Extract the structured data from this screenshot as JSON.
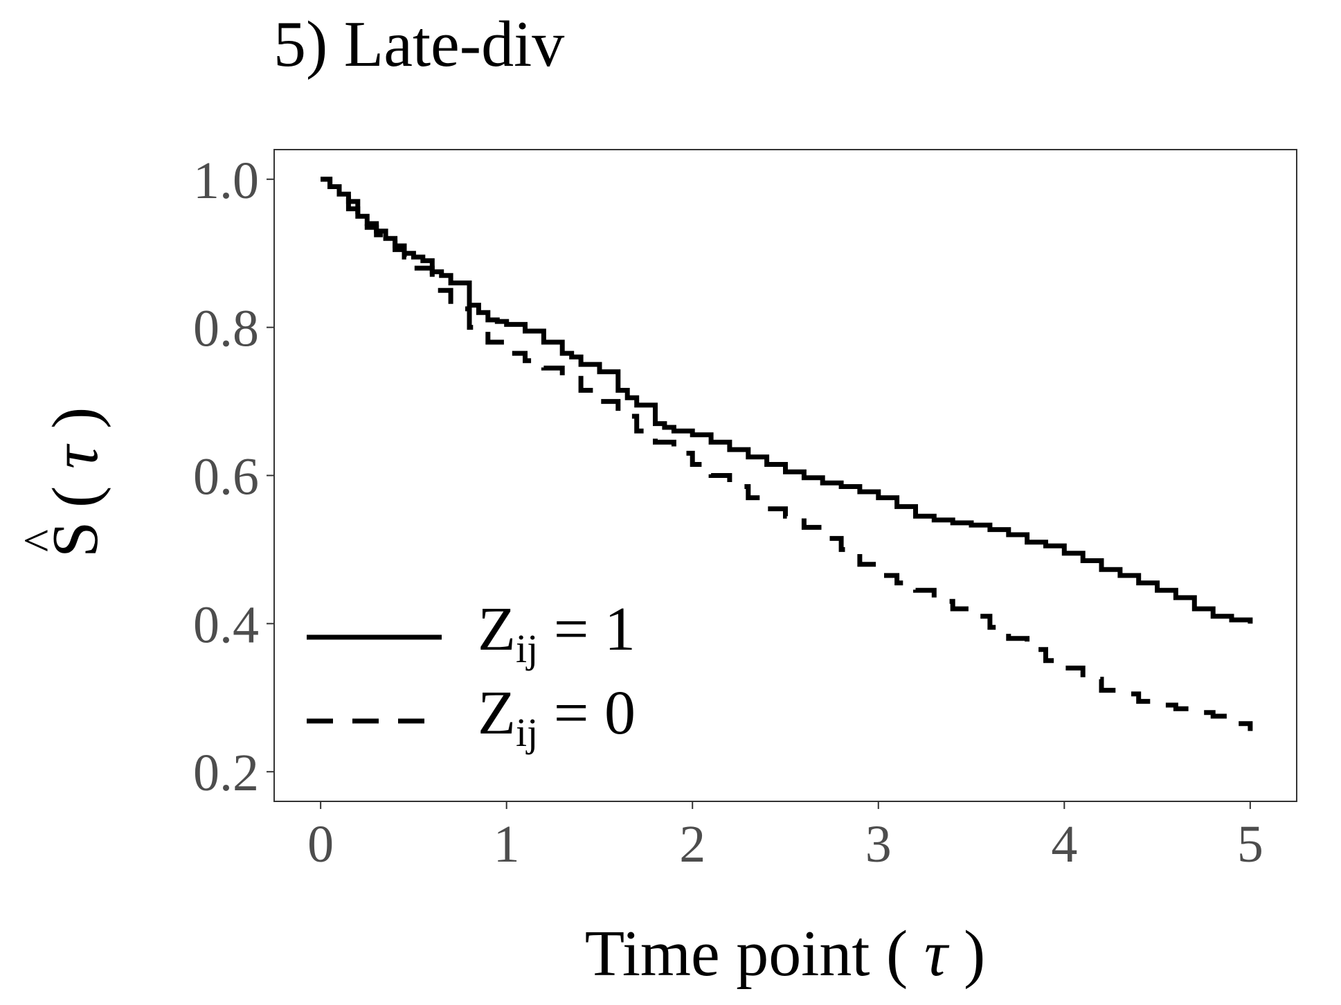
{
  "chart_data": {
    "type": "line",
    "title": "5) Late-div",
    "xlabel_main": "Time point ( ",
    "xlabel_sym": "τ",
    "xlabel_end": " )",
    "ylabel_main": "S",
    "ylabel_hat": "^",
    "ylabel_open": "(",
    "ylabel_sym": "τ",
    "ylabel_close": ")",
    "xlim": [
      -0.25,
      5.25
    ],
    "ylim": [
      0.16,
      1.04
    ],
    "x_ticks": [
      0,
      1,
      2,
      3,
      4,
      5
    ],
    "x_tick_labels": [
      "0",
      "1",
      "2",
      "3",
      "4",
      "5"
    ],
    "y_ticks": [
      0.2,
      0.4,
      0.6,
      0.8,
      1.0
    ],
    "y_tick_labels": [
      "0.2",
      "0.4",
      "0.6",
      "0.8",
      "1.0"
    ],
    "grid": false,
    "legend_position": "bottom-left",
    "legend": [
      {
        "main": "Z",
        "sub": "ij",
        "rest": " = 1",
        "style": "solid"
      },
      {
        "main": "Z",
        "sub": "ij",
        "rest": " = 0",
        "style": "dashed"
      }
    ],
    "series": [
      {
        "style": "solid",
        "x": [
          0,
          0.05,
          0.1,
          0.15,
          0.2,
          0.25,
          0.3,
          0.35,
          0.4,
          0.45,
          0.5,
          0.55,
          0.6,
          0.65,
          0.7,
          0.8,
          0.85,
          0.9,
          0.95,
          1.0,
          1.1,
          1.2,
          1.3,
          1.35,
          1.4,
          1.5,
          1.6,
          1.65,
          1.7,
          1.8,
          1.85,
          1.9,
          2.0,
          2.1,
          2.2,
          2.3,
          2.4,
          2.5,
          2.6,
          2.7,
          2.8,
          2.9,
          3.0,
          3.1,
          3.2,
          3.3,
          3.4,
          3.5,
          3.6,
          3.7,
          3.8,
          3.9,
          4.0,
          4.1,
          4.2,
          4.3,
          4.4,
          4.5,
          4.6,
          4.7,
          4.8,
          4.9,
          5.0
        ],
        "y": [
          1.0,
          0.99,
          0.98,
          0.97,
          0.95,
          0.94,
          0.93,
          0.92,
          0.91,
          0.9,
          0.895,
          0.89,
          0.875,
          0.87,
          0.86,
          0.83,
          0.82,
          0.81,
          0.808,
          0.804,
          0.795,
          0.78,
          0.765,
          0.76,
          0.75,
          0.74,
          0.715,
          0.705,
          0.695,
          0.67,
          0.665,
          0.66,
          0.655,
          0.645,
          0.635,
          0.625,
          0.615,
          0.605,
          0.597,
          0.59,
          0.585,
          0.578,
          0.57,
          0.558,
          0.545,
          0.54,
          0.536,
          0.533,
          0.527,
          0.52,
          0.51,
          0.505,
          0.495,
          0.485,
          0.473,
          0.465,
          0.455,
          0.445,
          0.435,
          0.42,
          0.41,
          0.405,
          0.4
        ]
      },
      {
        "style": "dashed",
        "x": [
          0,
          0.05,
          0.1,
          0.15,
          0.2,
          0.25,
          0.3,
          0.35,
          0.4,
          0.45,
          0.5,
          0.6,
          0.7,
          0.8,
          0.9,
          1.0,
          1.1,
          1.2,
          1.3,
          1.4,
          1.5,
          1.6,
          1.7,
          1.8,
          1.9,
          2.0,
          2.1,
          2.2,
          2.3,
          2.4,
          2.5,
          2.6,
          2.7,
          2.8,
          2.9,
          3.0,
          3.1,
          3.2,
          3.3,
          3.4,
          3.5,
          3.6,
          3.7,
          3.8,
          3.9,
          4.0,
          4.1,
          4.2,
          4.3,
          4.4,
          4.5,
          4.6,
          4.7,
          4.8,
          4.9,
          5.0
        ],
        "y": [
          1.0,
          0.99,
          0.975,
          0.96,
          0.95,
          0.935,
          0.925,
          0.915,
          0.905,
          0.895,
          0.88,
          0.85,
          0.825,
          0.8,
          0.78,
          0.765,
          0.755,
          0.745,
          0.735,
          0.715,
          0.7,
          0.68,
          0.66,
          0.645,
          0.63,
          0.615,
          0.6,
          0.585,
          0.57,
          0.555,
          0.545,
          0.53,
          0.515,
          0.5,
          0.48,
          0.465,
          0.455,
          0.445,
          0.43,
          0.42,
          0.41,
          0.395,
          0.38,
          0.365,
          0.35,
          0.34,
          0.325,
          0.31,
          0.305,
          0.295,
          0.29,
          0.285,
          0.28,
          0.275,
          0.265,
          0.255
        ]
      }
    ]
  }
}
